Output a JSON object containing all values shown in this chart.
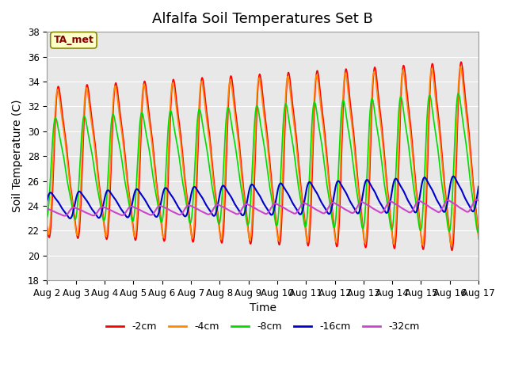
{
  "title": "Alfalfa Soil Temperatures Set B",
  "xlabel": "Time",
  "ylabel": "Soil Temperature (C)",
  "ylim": [
    18,
    38
  ],
  "xlim": [
    0,
    15
  ],
  "xtick_labels": [
    "Aug 2",
    "Aug 3",
    "Aug 4",
    "Aug 5",
    "Aug 6",
    "Aug 7",
    "Aug 8",
    "Aug 9",
    "Aug 10",
    "Aug 11",
    "Aug 12",
    "Aug 13",
    "Aug 14",
    "Aug 15",
    "Aug 16",
    "Aug 17"
  ],
  "ytick_vals": [
    18,
    20,
    22,
    24,
    26,
    28,
    30,
    32,
    34,
    36,
    38
  ],
  "line_colors": [
    "#ff0000",
    "#ff8800",
    "#00dd00",
    "#0000cc",
    "#cc44cc"
  ],
  "line_labels": [
    "-2cm",
    "-4cm",
    "-8cm",
    "-16cm",
    "-32cm"
  ],
  "annotation_label": "TA_met",
  "annotation_fg": "#880000",
  "annotation_bg": "#ffffcc",
  "annotation_border": "#888800",
  "bg_color": "#e8e8e8",
  "fig_color": "#ffffff",
  "grid_color": "#ffffff",
  "title_fontsize": 13,
  "label_fontsize": 10,
  "tick_fontsize": 8.5,
  "num_points": 3000,
  "days": 15
}
